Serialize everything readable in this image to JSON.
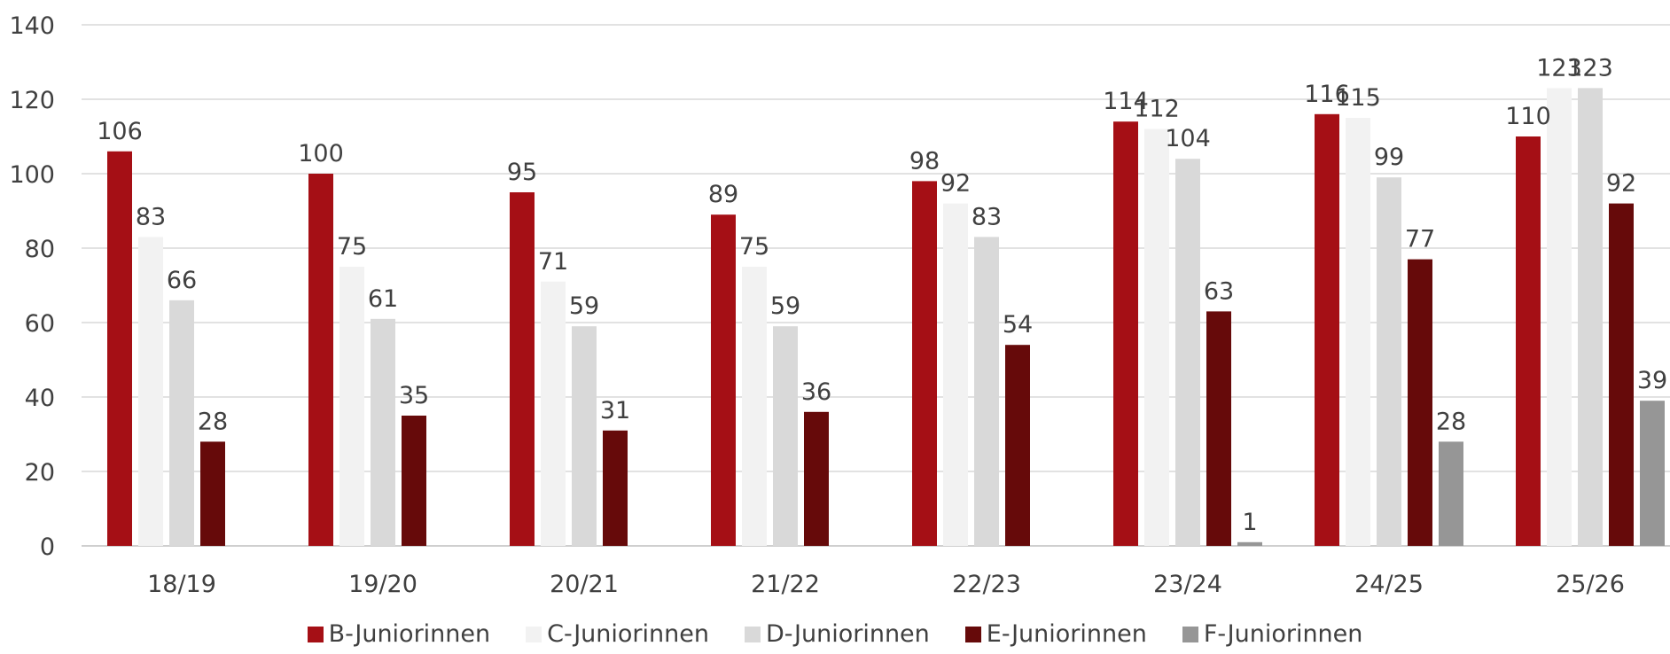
{
  "chart_data": {
    "type": "bar",
    "title": "",
    "xlabel": "",
    "ylabel": "",
    "ylim": [
      0,
      140
    ],
    "yticks": [
      0,
      20,
      40,
      60,
      80,
      100,
      120,
      140
    ],
    "grid": true,
    "legend_position": "bottom",
    "categories": [
      "18/19",
      "19/20",
      "20/21",
      "21/22",
      "22/23",
      "23/24",
      "24/25",
      "25/26"
    ],
    "series": [
      {
        "name": "B-Juniorinnen",
        "color": "#a50f15",
        "values": [
          106,
          100,
          95,
          89,
          98,
          114,
          116,
          110
        ]
      },
      {
        "name": "C-Juniorinnen",
        "color": "#f2f2f2",
        "values": [
          83,
          75,
          71,
          75,
          92,
          112,
          115,
          123
        ]
      },
      {
        "name": "D-Juniorinnen",
        "color": "#d9d9d9",
        "values": [
          66,
          61,
          59,
          59,
          83,
          104,
          99,
          123
        ]
      },
      {
        "name": "E-Juniorinnen",
        "color": "#660a0a",
        "values": [
          28,
          35,
          31,
          36,
          54,
          63,
          77,
          92
        ]
      },
      {
        "name": "F-Juniorinnen",
        "color": "#969696",
        "values": [
          null,
          null,
          null,
          null,
          null,
          1,
          28,
          39
        ]
      }
    ]
  }
}
